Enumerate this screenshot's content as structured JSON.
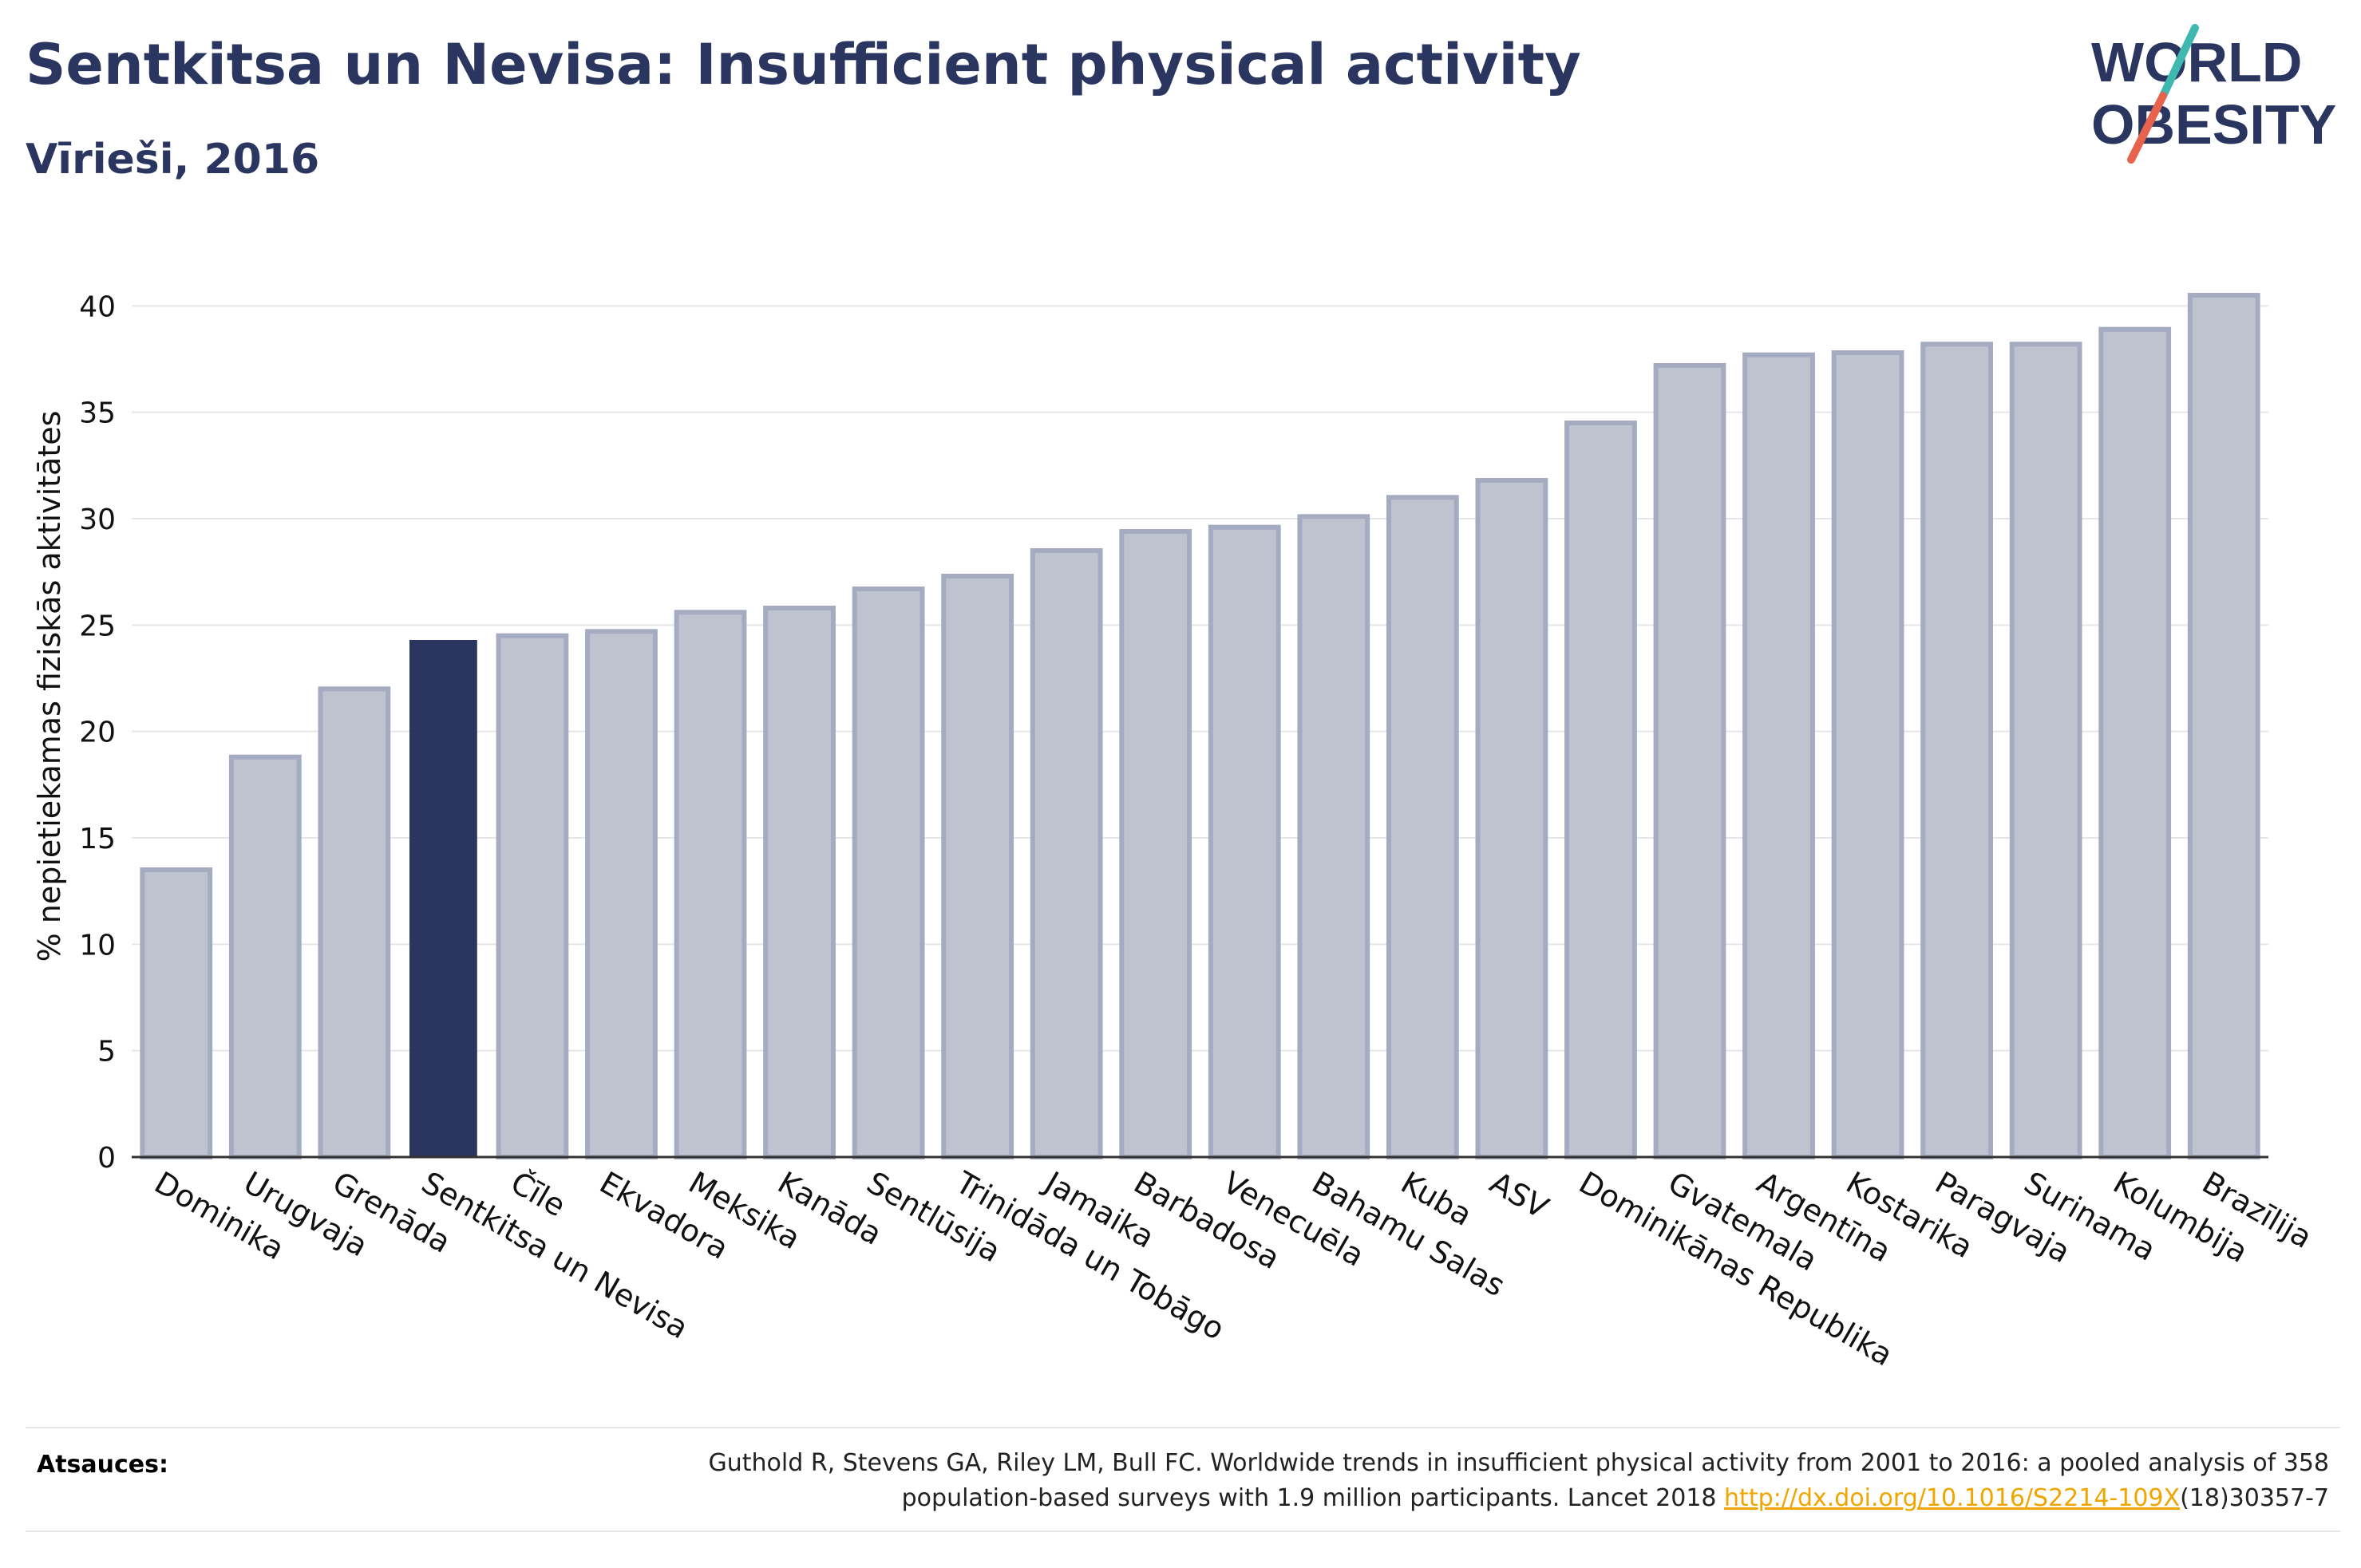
{
  "header": {
    "title": "Sentkitsa un Nevisa: Insufficient physical activity",
    "subtitle": "Vīrieši, 2016"
  },
  "logo": {
    "line1": "WORLD",
    "line2": "OBESITY"
  },
  "colors": {
    "highlight": "#2b3660",
    "bar": "#bfc3d0",
    "bar_edge": "#a5abc0",
    "logo_text": "#2b3660",
    "logo_teal": "#3fb8b0",
    "logo_red": "#e8634e",
    "link": "#f0a500"
  },
  "chart_data": {
    "type": "bar",
    "ylabel": "% nepietiekamas fiziskās aktivitātes",
    "ylim": [
      0,
      42
    ],
    "yticks": [
      0,
      5,
      10,
      15,
      20,
      25,
      30,
      35,
      40
    ],
    "grid": true,
    "highlight_category": "Sentkitsa un Nevisa",
    "categories": [
      "Dominika",
      "Urugvaja",
      "Grenāda",
      "Sentkitsa un Nevisa",
      "Čīle",
      "Ekvadora",
      "Meksika",
      "Kanāda",
      "Sentlūsija",
      "Trinidāda un Tobāgo",
      "Jamaika",
      "Barbadosa",
      "Venecuēla",
      "Bahamu Salas",
      "Kuba",
      "ASV",
      "Dominikānas Republika",
      "Gvatemala",
      "Argentīna",
      "Kostarika",
      "Paragvaja",
      "Surinama",
      "Kolumbija",
      "Brazīlija"
    ],
    "values": [
      13.5,
      18.8,
      22.0,
      24.3,
      24.5,
      24.7,
      25.6,
      25.8,
      26.7,
      27.3,
      28.5,
      29.4,
      29.6,
      30.1,
      31.0,
      31.8,
      34.5,
      37.2,
      37.7,
      37.8,
      38.2,
      38.2,
      38.9,
      40.5
    ]
  },
  "footer": {
    "source_label": "Atsauces:",
    "source_line1": "Guthold R, Stevens GA, Riley LM, Bull FC. Worldwide trends in insufficient physical activity from 2001 to 2016: a pooled analysis of 358",
    "source_line2_pre": "population-based surveys with 1.9 million participants. Lancet 2018 ",
    "source_link": "http://dx.doi.org/10.1016/S2214-109X",
    "source_line2_post": "(18)30357-7"
  }
}
